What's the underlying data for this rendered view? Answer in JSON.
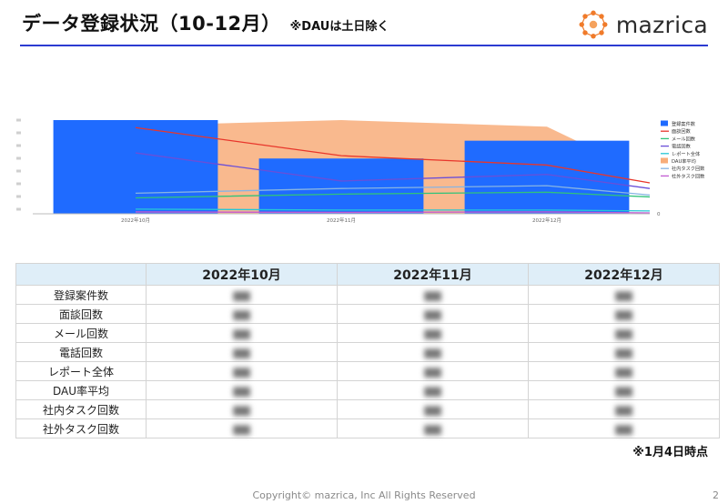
{
  "header": {
    "title": "データ登録状況（10-12月）",
    "subtitle": "※DAUは土日除く",
    "logo_text": "mazrica"
  },
  "chart_data": {
    "type": "bar",
    "categories": [
      "2022年10月",
      "2022年11月",
      "2022年12月"
    ],
    "y_right_tick": "0",
    "legend_position": "right",
    "series": [
      {
        "name": "登録案件数",
        "kind": "bar",
        "color": "#1f6bff",
        "values": [
          1.0,
          0.59,
          0.78
        ]
      },
      {
        "name": "面談回数",
        "kind": "line",
        "color": "#e8362b",
        "values": [
          0.92,
          0.62,
          0.52,
          0.33
        ],
        "x": [
          0,
          1,
          2,
          2.5
        ]
      },
      {
        "name": "メール回数",
        "kind": "line",
        "color": "#31c37a",
        "values": [
          0.17,
          0.21,
          0.23,
          0.18
        ],
        "x": [
          0,
          1,
          2,
          2.5
        ]
      },
      {
        "name": "電話回数",
        "kind": "line",
        "color": "#6a4fd8",
        "values": [
          0.65,
          0.35,
          0.42,
          0.27
        ],
        "x": [
          0,
          1,
          2,
          2.5
        ]
      },
      {
        "name": "レポート全体",
        "kind": "line",
        "color": "#26c6d6",
        "values": [
          0.05,
          0.04,
          0.04,
          0.03
        ],
        "x": [
          0,
          1,
          2,
          2.5
        ]
      },
      {
        "name": "DAU率平均",
        "kind": "area",
        "color": "#f8ad7a",
        "values": [
          0.94,
          1.0,
          0.93,
          0.72
        ],
        "x": [
          0,
          1,
          2,
          2.2
        ]
      },
      {
        "name": "社内タスク回数",
        "kind": "line",
        "color": "#87b4e3",
        "values": [
          0.22,
          0.27,
          0.3,
          0.2
        ],
        "x": [
          0,
          1,
          2,
          2.5
        ]
      },
      {
        "name": "社外タスク回数",
        "kind": "line",
        "color": "#c25bd2",
        "values": [
          0.02,
          0.015,
          0.02,
          0.01
        ],
        "x": [
          0,
          1,
          2,
          2.5
        ]
      }
    ]
  },
  "table": {
    "corner": "",
    "columns": [
      "2022年10月",
      "2022年11月",
      "2022年12月"
    ],
    "rows": [
      {
        "label": "登録案件数"
      },
      {
        "label": "面談回数"
      },
      {
        "label": "メール回数"
      },
      {
        "label": "電話回数"
      },
      {
        "label": "レポート全体"
      },
      {
        "label": "DAU率平均"
      },
      {
        "label": "社内タスク回数"
      },
      {
        "label": "社外タスク回数"
      }
    ]
  },
  "note": "※1月4日時点",
  "footer": {
    "copyright": "Copyright© mazrica, Inc All Rights Reserved",
    "page_number": "2"
  }
}
